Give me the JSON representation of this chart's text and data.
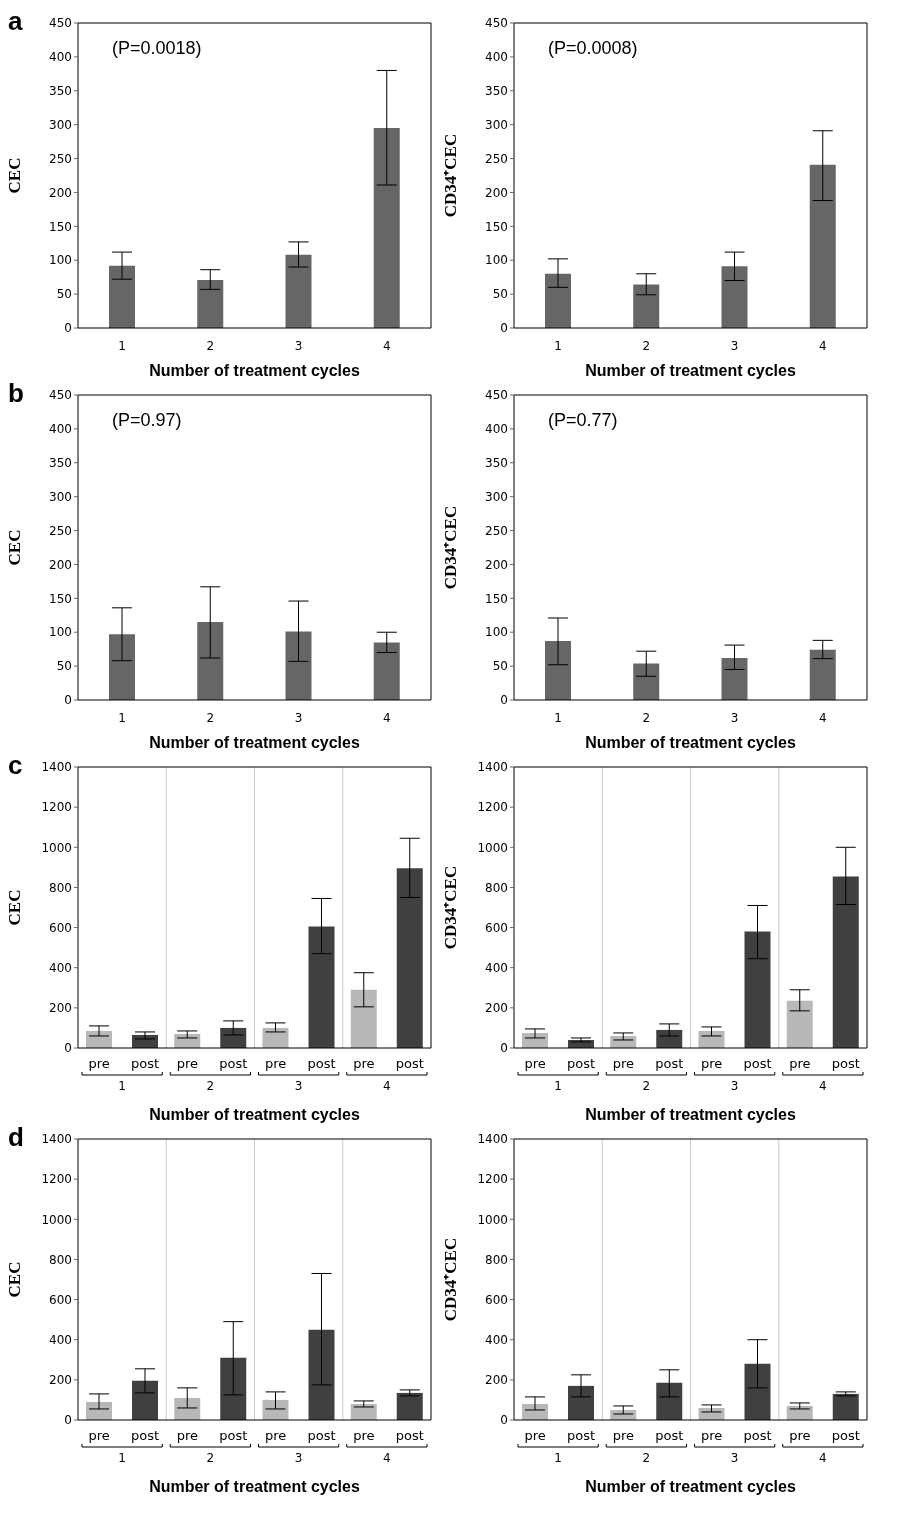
{
  "chart_data": [
    {
      "type": "bar",
      "title": "a",
      "ylabel": "CEC",
      "xlabel": "Number of treatment cycles",
      "annotations": [
        "(P=0.0018)"
      ],
      "categories": [
        "1",
        "2",
        "3",
        "4"
      ],
      "color": "#666666",
      "values": [
        92,
        71,
        108,
        295
      ],
      "errors": [
        [
          72,
          112
        ],
        [
          57,
          86
        ],
        [
          90,
          127
        ],
        [
          211,
          380
        ]
      ],
      "ylim": [
        0,
        450
      ],
      "yticks": [
        0,
        50,
        100,
        150,
        200,
        250,
        300,
        350,
        400,
        450
      ]
    },
    {
      "type": "bar",
      "ylabel": "CD34⁺CEC",
      "xlabel": "Number of treatment cycles",
      "annotations": [
        "(P=0.0008)"
      ],
      "categories": [
        "1",
        "2",
        "3",
        "4"
      ],
      "color": "#666666",
      "values": [
        80,
        64,
        91,
        241
      ],
      "errors": [
        [
          60,
          102
        ],
        [
          49,
          80
        ],
        [
          70,
          112
        ],
        [
          188,
          291
        ]
      ],
      "ylim": [
        0,
        450
      ],
      "yticks": [
        0,
        50,
        100,
        150,
        200,
        250,
        300,
        350,
        400,
        450
      ]
    },
    {
      "type": "bar",
      "title": "b",
      "ylabel": "CEC",
      "xlabel": "Number of treatment cycles",
      "annotations": [
        "(P=0.97)"
      ],
      "categories": [
        "1",
        "2",
        "3",
        "4"
      ],
      "color": "#666666",
      "values": [
        97,
        115,
        101,
        85
      ],
      "errors": [
        [
          58,
          136
        ],
        [
          62,
          167
        ],
        [
          57,
          146
        ],
        [
          70,
          100
        ]
      ],
      "ylim": [
        0,
        450
      ],
      "yticks": [
        0,
        50,
        100,
        150,
        200,
        250,
        300,
        350,
        400,
        450
      ]
    },
    {
      "type": "bar",
      "ylabel": "CD34⁺CEC",
      "xlabel": "Number of treatment cycles",
      "annotations": [
        "(P=0.77)"
      ],
      "categories": [
        "1",
        "2",
        "3",
        "4"
      ],
      "color": "#666666",
      "values": [
        87,
        54,
        62,
        74
      ],
      "errors": [
        [
          52,
          121
        ],
        [
          35,
          72
        ],
        [
          45,
          81
        ],
        [
          61,
          88
        ]
      ],
      "ylim": [
        0,
        450
      ],
      "yticks": [
        0,
        50,
        100,
        150,
        200,
        250,
        300,
        350,
        400,
        450
      ]
    },
    {
      "type": "bar",
      "title": "c",
      "ylabel": "CEC",
      "xlabel": "Number of treatment cycles",
      "categories": [
        "1",
        "2",
        "3",
        "4"
      ],
      "grid": "x",
      "ylim": [
        0,
        1400
      ],
      "yticks": [
        0,
        200,
        400,
        600,
        800,
        1000,
        1200,
        1400
      ],
      "series": [
        {
          "name": "pre",
          "color": "#b8b8b8",
          "values": [
            85,
            70,
            100,
            290
          ],
          "errors": [
            [
              60,
              110
            ],
            [
              50,
              85
            ],
            [
              80,
              125
            ],
            [
              205,
              375
            ]
          ]
        },
        {
          "name": "post",
          "color": "#404040",
          "values": [
            65,
            100,
            605,
            895
          ],
          "errors": [
            [
              45,
              80
            ],
            [
              65,
              135
            ],
            [
              470,
              745
            ],
            [
              750,
              1045
            ]
          ]
        }
      ]
    },
    {
      "type": "bar",
      "ylabel": "CD34⁺CEC",
      "xlabel": "Number of treatment cycles",
      "categories": [
        "1",
        "2",
        "3",
        "4"
      ],
      "grid": "x",
      "ylim": [
        0,
        1400
      ],
      "yticks": [
        0,
        200,
        400,
        600,
        800,
        1000,
        1200,
        1400
      ],
      "series": [
        {
          "name": "pre",
          "color": "#b8b8b8",
          "values": [
            75,
            60,
            85,
            235
          ],
          "errors": [
            [
              50,
              95
            ],
            [
              40,
              75
            ],
            [
              60,
              105
            ],
            [
              185,
              290
            ]
          ]
        },
        {
          "name": "post",
          "color": "#404040",
          "values": [
            40,
            90,
            580,
            855
          ],
          "errors": [
            [
              30,
              50
            ],
            [
              60,
              120
            ],
            [
              445,
              710
            ],
            [
              715,
              1000
            ]
          ]
        }
      ]
    },
    {
      "type": "bar",
      "title": "d",
      "ylabel": "CEC",
      "xlabel": "Number of treatment cycles",
      "categories": [
        "1",
        "2",
        "3",
        "4"
      ],
      "grid": "x",
      "ylim": [
        0,
        1400
      ],
      "yticks": [
        0,
        200,
        400,
        600,
        800,
        1000,
        1200,
        1400
      ],
      "series": [
        {
          "name": "pre",
          "color": "#b8b8b8",
          "values": [
            90,
            110,
            100,
            80
          ],
          "errors": [
            [
              55,
              130
            ],
            [
              60,
              160
            ],
            [
              55,
              140
            ],
            [
              65,
              95
            ]
          ]
        },
        {
          "name": "post",
          "color": "#404040",
          "values": [
            195,
            310,
            450,
            135
          ],
          "errors": [
            [
              135,
              255
            ],
            [
              125,
              490
            ],
            [
              175,
              730
            ],
            [
              120,
              150
            ]
          ]
        }
      ]
    },
    {
      "type": "bar",
      "ylabel": "CD34⁺CEC",
      "xlabel": "Number of treatment cycles",
      "categories": [
        "1",
        "2",
        "3",
        "4"
      ],
      "grid": "x",
      "ylim": [
        0,
        1400
      ],
      "yticks": [
        0,
        200,
        400,
        600,
        800,
        1000,
        1200,
        1400
      ],
      "series": [
        {
          "name": "pre",
          "color": "#b8b8b8",
          "values": [
            80,
            50,
            60,
            70
          ],
          "errors": [
            [
              50,
              115
            ],
            [
              30,
              70
            ],
            [
              40,
              75
            ],
            [
              55,
              85
            ]
          ]
        },
        {
          "name": "post",
          "color": "#404040",
          "values": [
            170,
            185,
            280,
            130
          ],
          "errors": [
            [
              115,
              225
            ],
            [
              115,
              250
            ],
            [
              160,
              400
            ],
            [
              120,
              140
            ]
          ]
        }
      ]
    }
  ]
}
